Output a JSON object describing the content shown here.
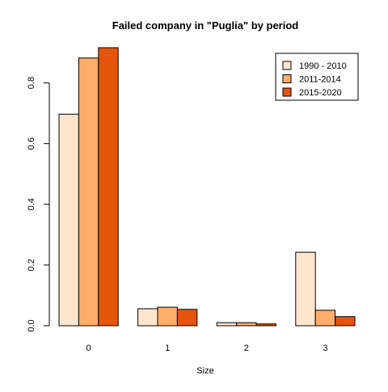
{
  "chart_data": {
    "type": "bar",
    "title": "Failed company in \"Puglia\" by period",
    "xlabel": "Size",
    "ylabel": "",
    "categories": [
      "0",
      "1",
      "2",
      "3"
    ],
    "series": [
      {
        "name": "1990 - 2010",
        "color": "#FEE6CE",
        "values": [
          0.697,
          0.056,
          0.01,
          0.242
        ]
      },
      {
        "name": "2011-2014",
        "color": "#FDAE6B",
        "values": [
          0.882,
          0.061,
          0.01,
          0.051
        ]
      },
      {
        "name": "2015-2020",
        "color": "#E6550D",
        "values": [
          0.916,
          0.054,
          0.006,
          0.03
        ]
      }
    ],
    "ylim": [
      0,
      0.916
    ],
    "yticks": [
      0.0,
      0.2,
      0.4,
      0.6,
      0.8
    ],
    "ytick_labels": [
      "0.0",
      "0.2",
      "0.4",
      "0.6",
      "0.8"
    ],
    "legend_position": "top-right",
    "grid": false
  }
}
